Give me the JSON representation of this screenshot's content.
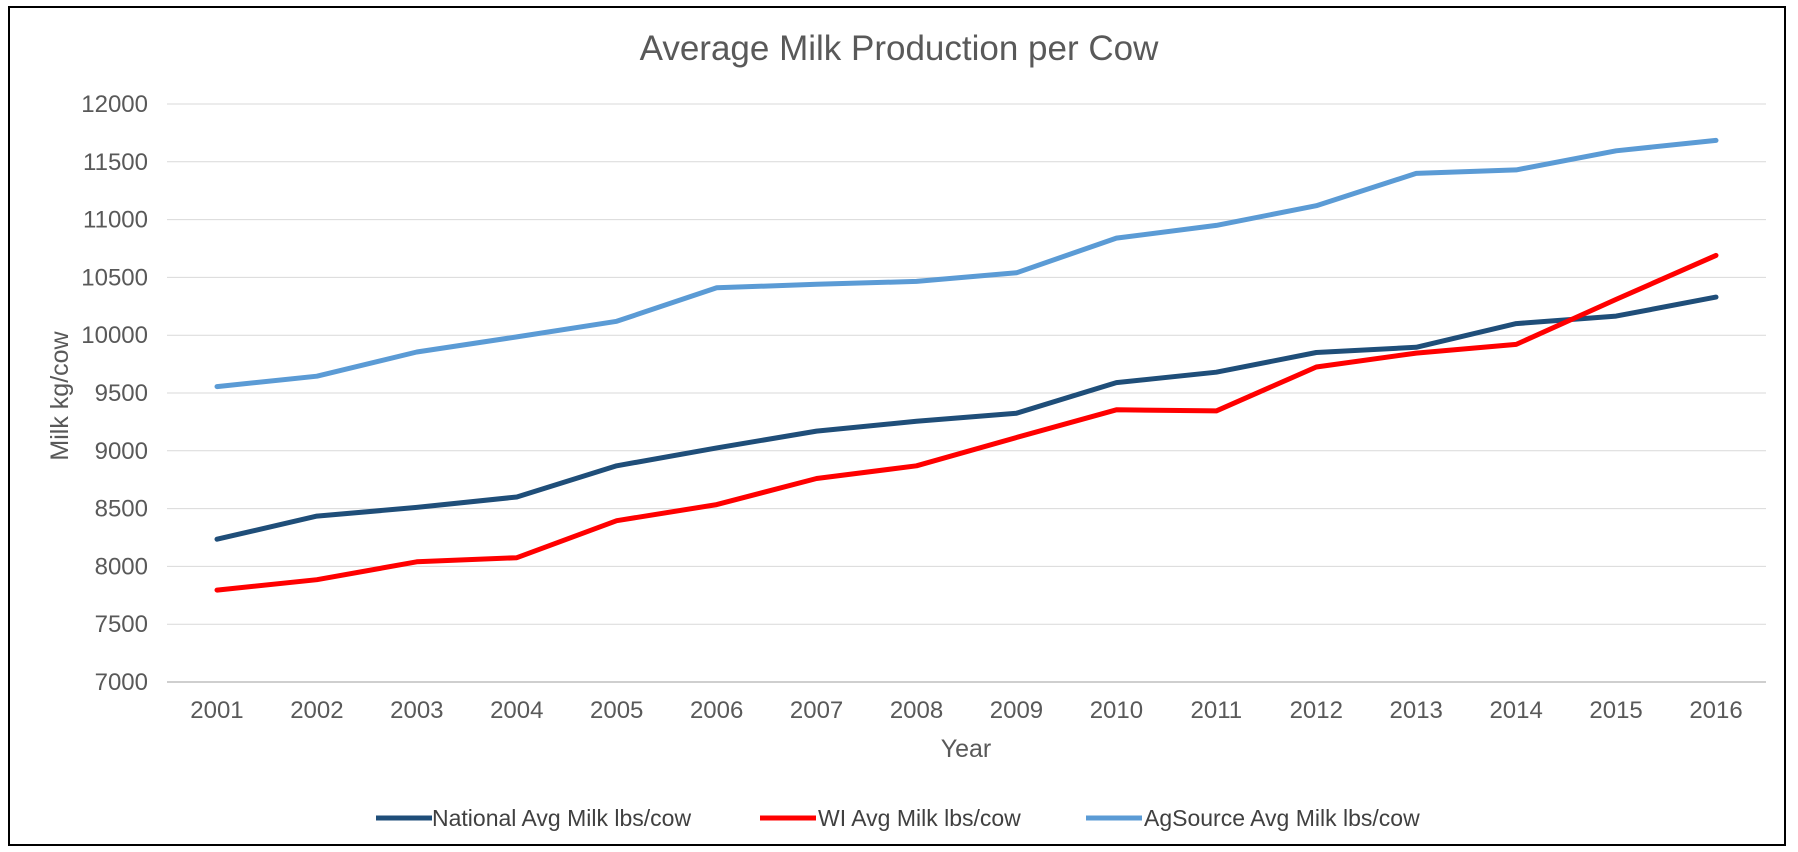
{
  "chart_data": {
    "type": "line",
    "title": "Average Milk Production per Cow",
    "xlabel": "Year",
    "ylabel": "Milk kg/cow",
    "categories": [
      "2001",
      "2002",
      "2003",
      "2004",
      "2005",
      "2006",
      "2007",
      "2008",
      "2009",
      "2010",
      "2011",
      "2012",
      "2013",
      "2014",
      "2015",
      "2016"
    ],
    "ylim": [
      7000,
      12000
    ],
    "yticks": [
      12000,
      11500,
      11000,
      10500,
      10000,
      9500,
      9000,
      8500,
      8000,
      7500,
      7000
    ],
    "grid": true,
    "legend_position": "bottom",
    "series": [
      {
        "name": "National Avg Milk lbs/cow",
        "color": "#1f4e79",
        "values": [
          8235,
          8435,
          8510,
          8600,
          8870,
          9025,
          9170,
          9255,
          9325,
          9590,
          9680,
          9850,
          9895,
          10100,
          10165,
          10330
        ]
      },
      {
        "name": "WI Avg Milk lbs/cow",
        "color": "#ff0000",
        "values": [
          7795,
          7885,
          8040,
          8075,
          8395,
          8535,
          8760,
          8870,
          9115,
          9355,
          9345,
          9725,
          9845,
          9920,
          10310,
          10690
        ]
      },
      {
        "name": "AgSource Avg Milk lbs/cow",
        "color": "#5b9bd5",
        "values": [
          9555,
          9645,
          9855,
          9985,
          10120,
          10410,
          10440,
          10465,
          10540,
          10840,
          10950,
          11120,
          11400,
          11430,
          11595,
          11685
        ]
      }
    ]
  }
}
